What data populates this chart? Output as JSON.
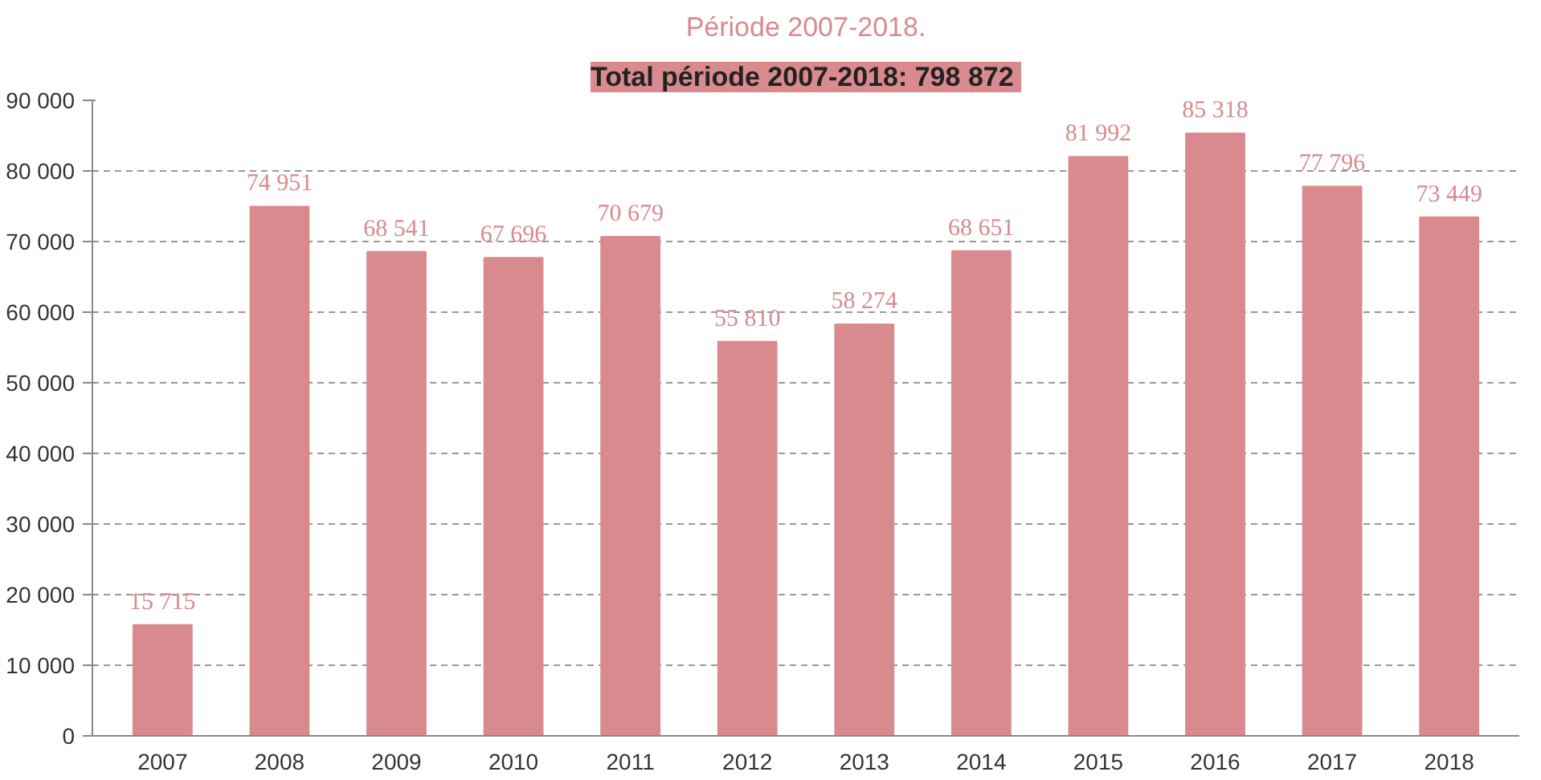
{
  "chart_data": {
    "type": "bar",
    "subtitle": "Période 2007-2018.",
    "title": "Total période 2007-2018:  798 872",
    "categories": [
      "2007",
      "2008",
      "2009",
      "2010",
      "2011",
      "2012",
      "2013",
      "2014",
      "2015",
      "2016",
      "2017",
      "2018"
    ],
    "values": [
      15715,
      74951,
      68541,
      67696,
      70679,
      55810,
      58274,
      68651,
      81992,
      85318,
      77796,
      73449
    ],
    "value_labels": [
      "15 715",
      "74 951",
      "68 541",
      "67 696",
      "70 679",
      "55 810",
      "58 274",
      "68 651",
      "81 992",
      "85 318",
      "77 796",
      "73 449"
    ],
    "color": "#d98a8e",
    "ylim": [
      0,
      90000
    ],
    "yticks": [
      {
        "value": 0,
        "label": "0"
      },
      {
        "value": 10000,
        "label": "10 000"
      },
      {
        "value": 20000,
        "label": "20 000"
      },
      {
        "value": 30000,
        "label": "30 000"
      },
      {
        "value": 40000,
        "label": "40 000"
      },
      {
        "value": 50000,
        "label": "50 000"
      },
      {
        "value": 60000,
        "label": "60 000"
      },
      {
        "value": 70000,
        "label": "70 000"
      },
      {
        "value": 80000,
        "label": "80 000"
      },
      {
        "value": 90000,
        "label": "90 000"
      }
    ],
    "grid": "y"
  }
}
